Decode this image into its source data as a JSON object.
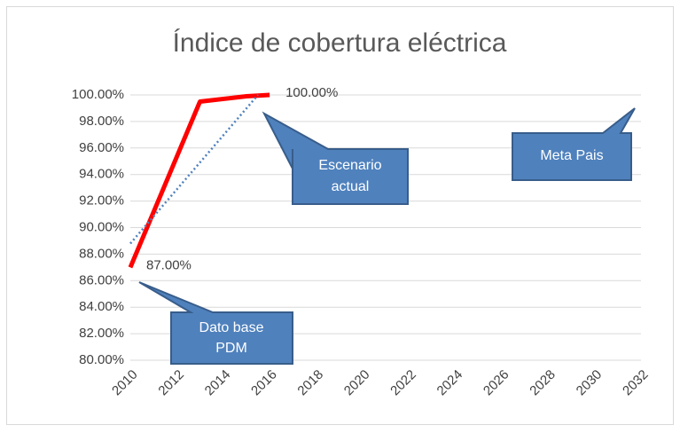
{
  "chart_data": {
    "type": "line",
    "title": "Índice de cobertura eléctrica",
    "xlim": [
      2010,
      2032
    ],
    "xticks": [
      2010,
      2012,
      2014,
      2016,
      2018,
      2020,
      2022,
      2024,
      2026,
      2028,
      2030,
      2032
    ],
    "ylim": [
      80,
      100
    ],
    "yticks": [
      {
        "value": 80,
        "label": "80.00%"
      },
      {
        "value": 82,
        "label": "82.00%"
      },
      {
        "value": 84,
        "label": "84.00%"
      },
      {
        "value": 86,
        "label": "86.00%"
      },
      {
        "value": 88,
        "label": "88.00%"
      },
      {
        "value": 90,
        "label": "90.00%"
      },
      {
        "value": 92,
        "label": "92.00%"
      },
      {
        "value": 94,
        "label": "94.00%"
      },
      {
        "value": 96,
        "label": "96.00%"
      },
      {
        "value": 98,
        "label": "98.00%"
      },
      {
        "value": 100,
        "label": "100.00%"
      }
    ],
    "grid": true,
    "series": [
      {
        "color": "#ff0000",
        "x": [
          2010,
          2013,
          2015,
          2016
        ],
        "values": [
          87,
          99.5,
          99.9,
          100
        ],
        "value_labels": [
          "87.00%",
          null,
          null,
          "100.00%"
        ]
      },
      {
        "color": "#4f81bd",
        "dashed": true,
        "x": [
          2010,
          2015.5
        ],
        "values": [
          88.8,
          100
        ]
      }
    ],
    "annotations": [
      {
        "lines": [
          "Dato base",
          "PDM"
        ]
      },
      {
        "lines": [
          "Escenario",
          "actual"
        ]
      },
      {
        "lines": [
          "Meta  Pais"
        ]
      }
    ]
  }
}
